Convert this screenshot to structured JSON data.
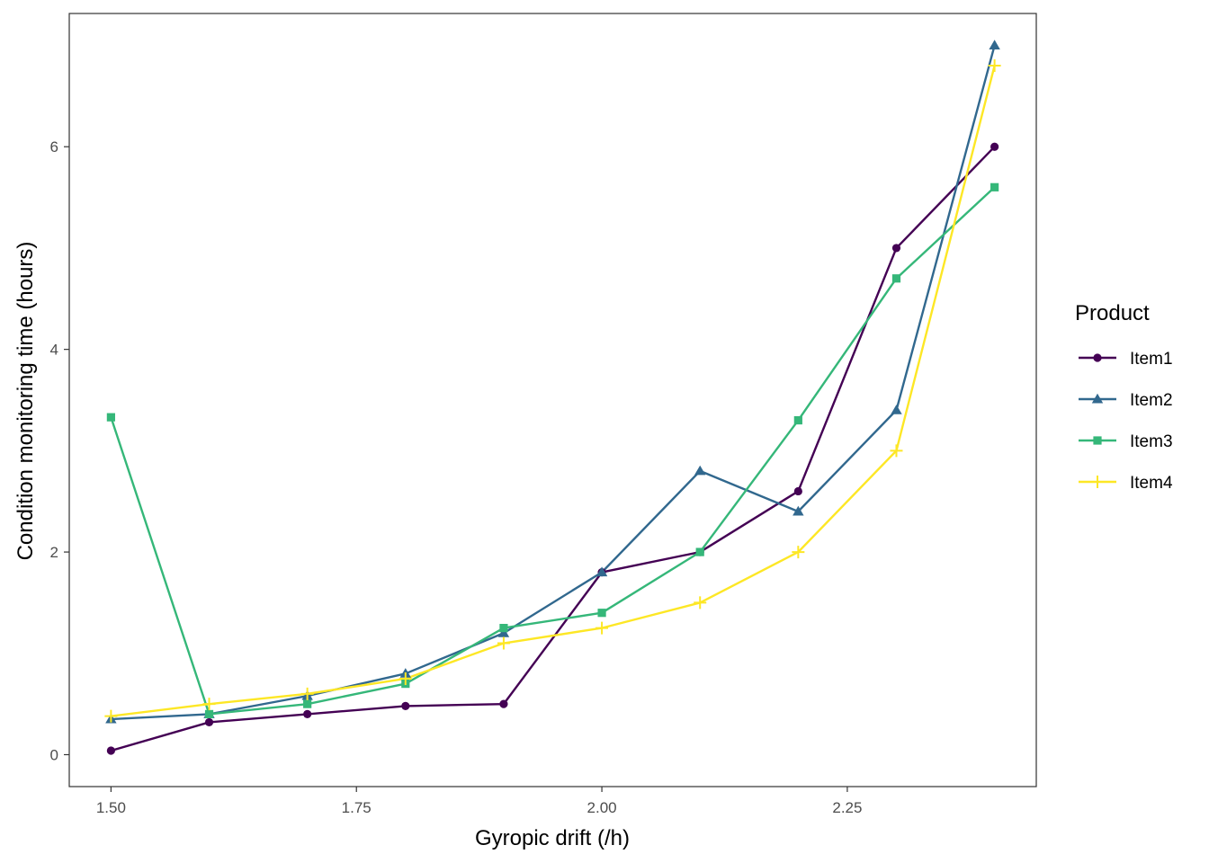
{
  "chart_data": {
    "type": "line",
    "title": "",
    "xlabel": "Gyropic drift (/h)",
    "ylabel": "Condition monitoring time (hours)",
    "xlim": [
      1.4575,
      2.4425
    ],
    "ylim": [
      -0.315,
      7.315
    ],
    "x_ticks": [
      {
        "value": 1.5,
        "label": "1.50"
      },
      {
        "value": 1.75,
        "label": "1.75"
      },
      {
        "value": 2.0,
        "label": "2.00"
      },
      {
        "value": 2.25,
        "label": "2.25"
      }
    ],
    "y_ticks": [
      {
        "value": 0,
        "label": "0"
      },
      {
        "value": 2,
        "label": "2"
      },
      {
        "value": 4,
        "label": "4"
      },
      {
        "value": 6,
        "label": "6"
      }
    ],
    "grid": false,
    "legend": {
      "title": "Product",
      "position": "right"
    },
    "x": [
      1.5,
      1.6,
      1.7,
      1.8,
      1.9,
      2.0,
      2.1,
      2.2,
      2.3,
      2.4
    ],
    "series": [
      {
        "name": "Item1",
        "color": "#440154",
        "marker": "circle",
        "values": [
          0.04,
          0.32,
          0.4,
          0.48,
          0.5,
          1.8,
          2.0,
          2.6,
          5.0,
          6.0
        ]
      },
      {
        "name": "Item2",
        "color": "#31688e",
        "marker": "triangle",
        "values": [
          0.35,
          0.4,
          0.58,
          0.8,
          1.2,
          1.8,
          2.8,
          2.4,
          3.4,
          7.0
        ]
      },
      {
        "name": "Item3",
        "color": "#35b779",
        "marker": "square",
        "values": [
          3.33,
          0.4,
          0.5,
          0.7,
          1.25,
          1.4,
          2.0,
          3.3,
          4.7,
          5.6
        ]
      },
      {
        "name": "Item4",
        "color": "#fde725",
        "marker": "plus",
        "values": [
          0.38,
          0.5,
          0.6,
          0.75,
          1.1,
          1.25,
          1.5,
          2.0,
          3.0,
          6.8
        ]
      }
    ]
  }
}
